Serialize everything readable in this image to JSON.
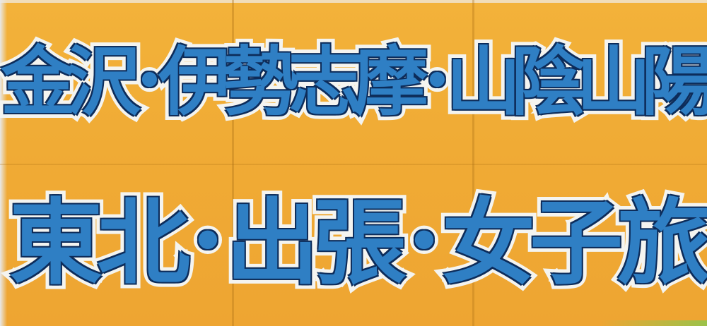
{
  "sign": {
    "line1": "金沢･伊勢志摩･山陰山陽",
    "line2": "東北･出張･女子旅"
  },
  "colors": {
    "background": "#f0ab35",
    "text_fill": "#2f7fc4",
    "text_outline": "#0d2c5a",
    "text_halo": "#f4f4f0"
  }
}
